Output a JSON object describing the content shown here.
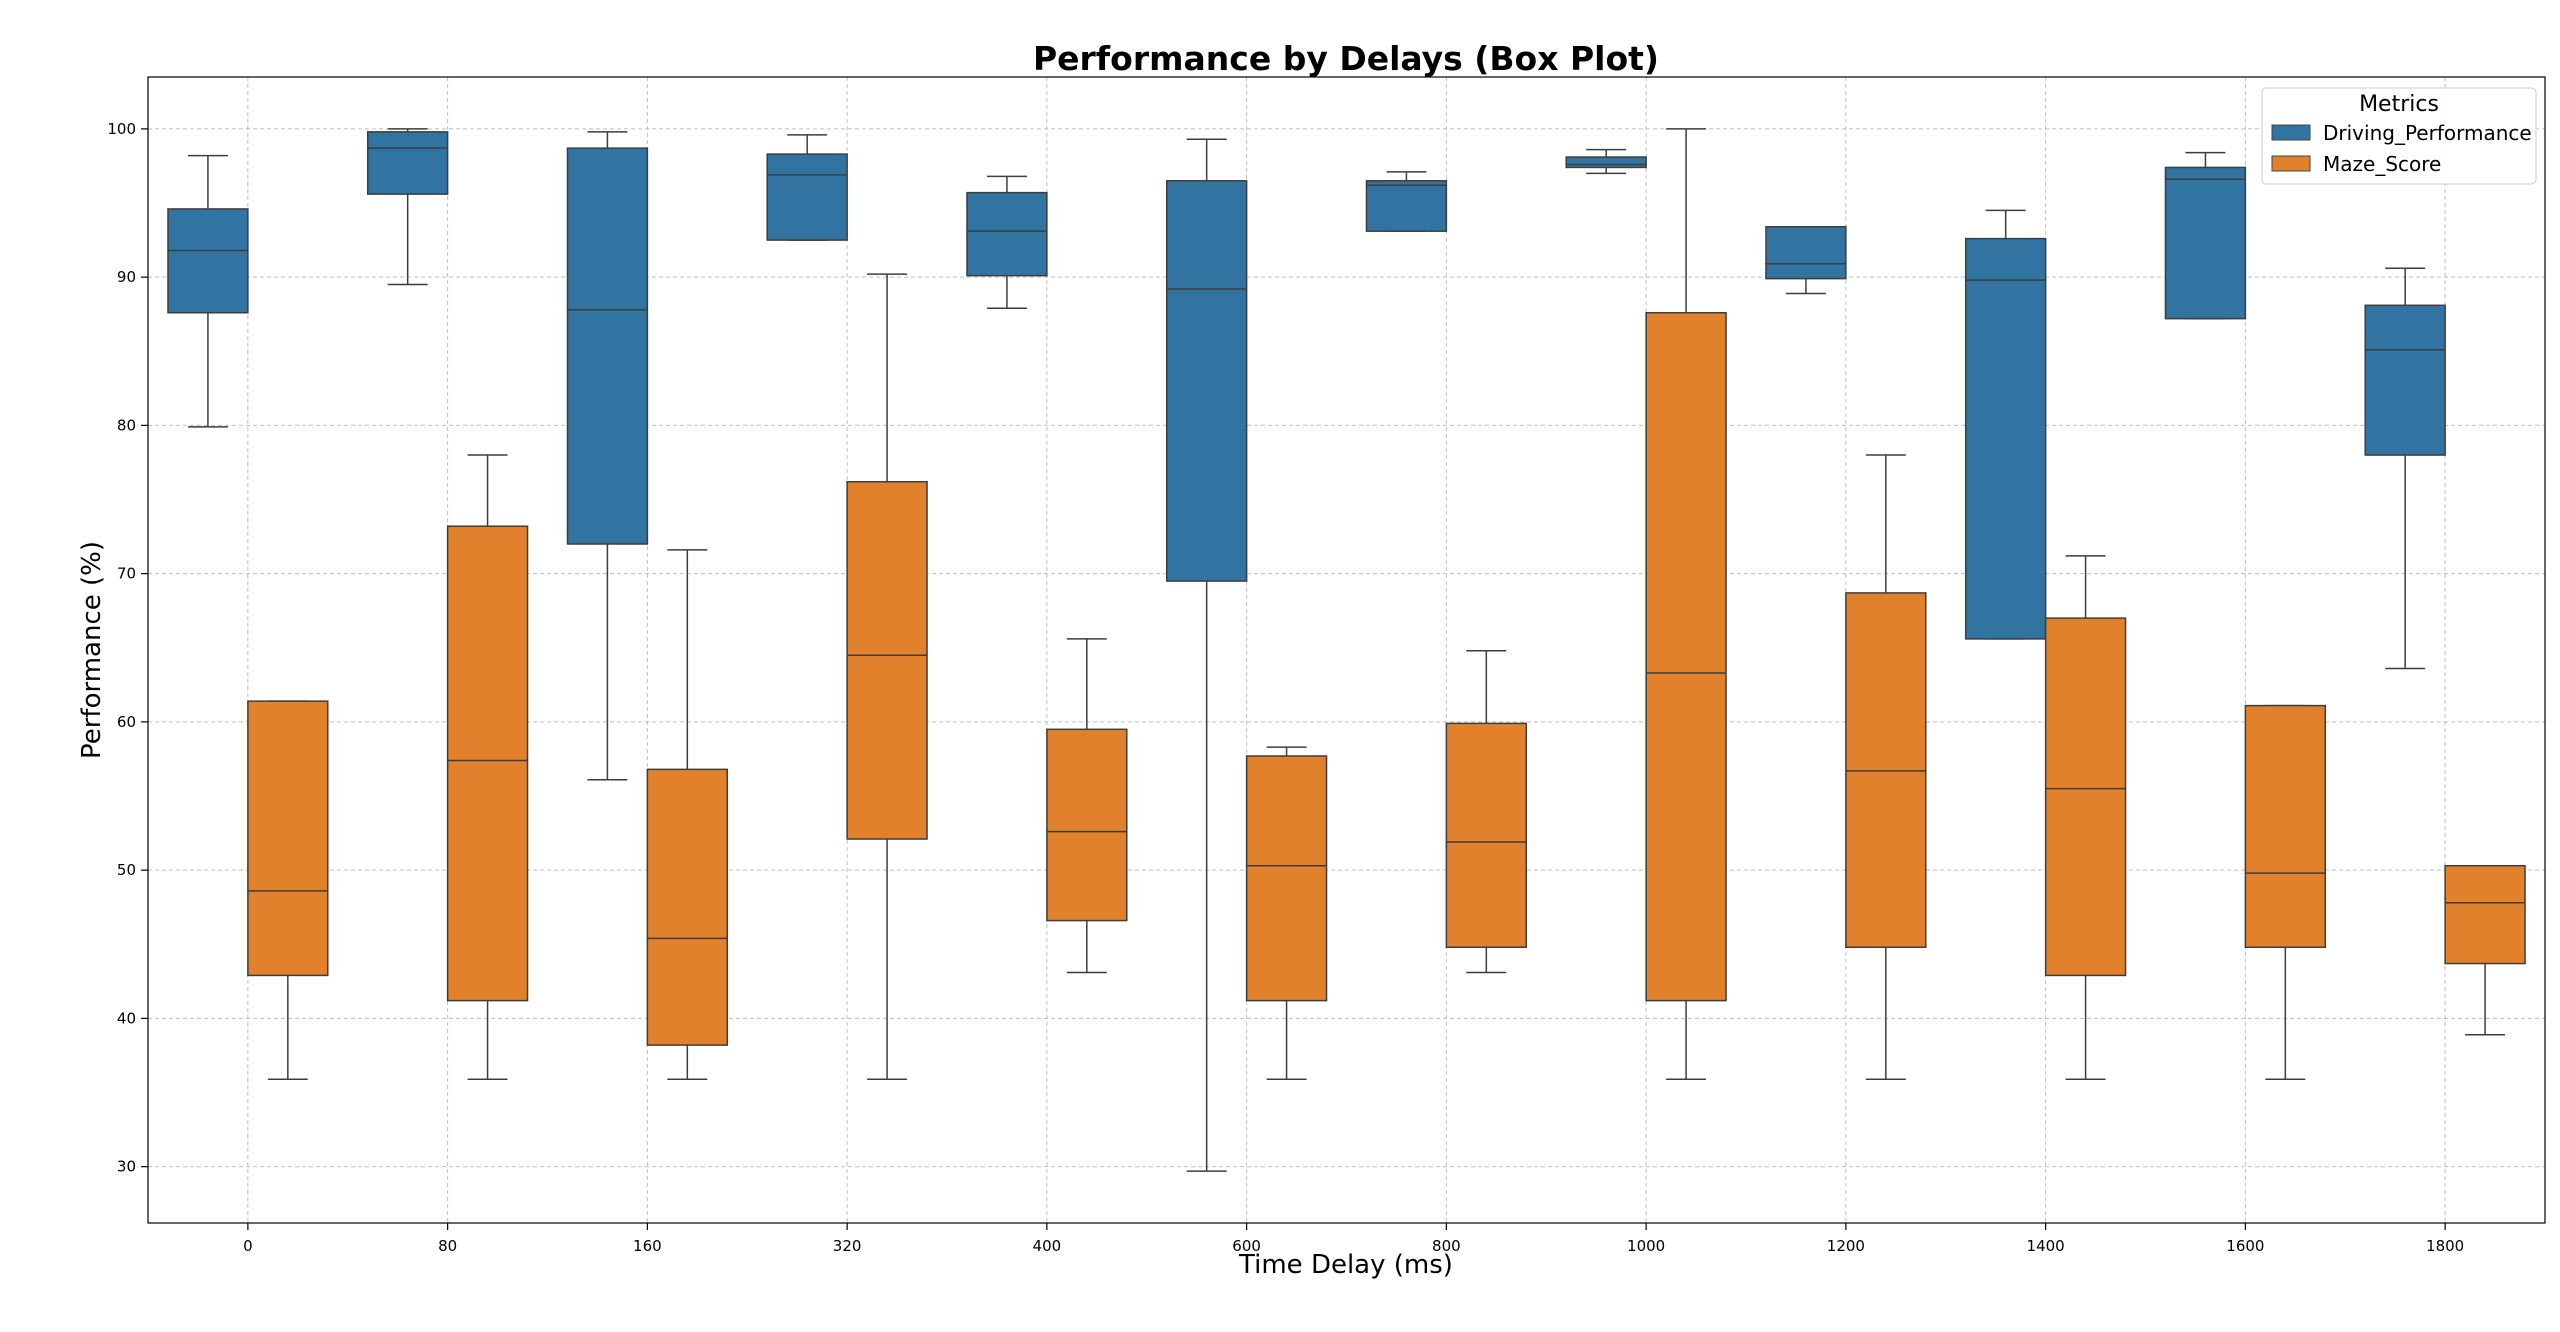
{
  "chart_data": {
    "type": "box",
    "title": "Performance by Delays (Box Plot)",
    "xlabel": "Time Delay (ms)",
    "ylabel": "Performance (%)",
    "categories": [
      "0",
      "80",
      "160",
      "320",
      "400",
      "600",
      "800",
      "1000",
      "1200",
      "1400",
      "1600",
      "1800"
    ],
    "yticks": [
      30,
      40,
      50,
      60,
      70,
      80,
      90,
      100
    ],
    "ylim": [
      26.2,
      103.5
    ],
    "grid": true,
    "legend": {
      "title": "Metrics",
      "placement": "top-right"
    },
    "series": [
      {
        "name": "Driving_Performance",
        "color": "#3274a1",
        "boxes": [
          {
            "whisker_low": 79.9,
            "q1": 87.6,
            "median": 91.8,
            "q3": 94.6,
            "whisker_high": 98.2
          },
          {
            "whisker_low": 89.5,
            "q1": 95.6,
            "median": 98.7,
            "q3": 99.8,
            "whisker_high": 100.0
          },
          {
            "whisker_low": 56.1,
            "q1": 72.0,
            "median": 87.8,
            "q3": 98.7,
            "whisker_high": 99.8
          },
          {
            "whisker_low": 92.5,
            "q1": 92.5,
            "median": 96.9,
            "q3": 98.3,
            "whisker_high": 99.6
          },
          {
            "whisker_low": 87.9,
            "q1": 90.1,
            "median": 93.1,
            "q3": 95.7,
            "whisker_high": 96.8
          },
          {
            "whisker_low": 29.7,
            "q1": 69.5,
            "median": 89.2,
            "q3": 96.5,
            "whisker_high": 99.3
          },
          {
            "whisker_low": 93.1,
            "q1": 93.1,
            "median": 96.2,
            "q3": 96.5,
            "whisker_high": 97.1
          },
          {
            "whisker_low": 97.0,
            "q1": 97.4,
            "median": 97.6,
            "q3": 98.1,
            "whisker_high": 98.6
          },
          {
            "whisker_low": 88.9,
            "q1": 89.9,
            "median": 90.9,
            "q3": 93.4,
            "whisker_high": 93.4
          },
          {
            "whisker_low": 65.6,
            "q1": 65.6,
            "median": 89.8,
            "q3": 92.6,
            "whisker_high": 94.5
          },
          {
            "whisker_low": 87.2,
            "q1": 87.2,
            "median": 96.6,
            "q3": 97.4,
            "whisker_high": 98.4
          },
          {
            "whisker_low": 63.6,
            "q1": 78.0,
            "median": 85.1,
            "q3": 88.1,
            "whisker_high": 90.6
          }
        ]
      },
      {
        "name": "Maze_Score",
        "color": "#e1812c",
        "boxes": [
          {
            "whisker_low": 35.9,
            "q1": 42.9,
            "median": 48.6,
            "q3": 61.4,
            "whisker_high": 61.4
          },
          {
            "whisker_low": 35.9,
            "q1": 41.2,
            "median": 57.4,
            "q3": 73.2,
            "whisker_high": 78.0
          },
          {
            "whisker_low": 35.9,
            "q1": 38.2,
            "median": 45.4,
            "q3": 56.8,
            "whisker_high": 71.6
          },
          {
            "whisker_low": 35.9,
            "q1": 52.1,
            "median": 64.5,
            "q3": 76.2,
            "whisker_high": 90.2
          },
          {
            "whisker_low": 43.1,
            "q1": 46.6,
            "median": 52.6,
            "q3": 59.5,
            "whisker_high": 65.6
          },
          {
            "whisker_low": 35.9,
            "q1": 41.2,
            "median": 50.3,
            "q3": 57.7,
            "whisker_high": 58.3
          },
          {
            "whisker_low": 43.1,
            "q1": 44.8,
            "median": 51.9,
            "q3": 59.9,
            "whisker_high": 64.8
          },
          {
            "whisker_low": 35.9,
            "q1": 41.2,
            "median": 63.3,
            "q3": 87.6,
            "whisker_high": 100.0
          },
          {
            "whisker_low": 35.9,
            "q1": 44.8,
            "median": 56.7,
            "q3": 68.7,
            "whisker_high": 78.0
          },
          {
            "whisker_low": 35.9,
            "q1": 42.9,
            "median": 55.5,
            "q3": 67.0,
            "whisker_high": 71.2
          },
          {
            "whisker_low": 35.9,
            "q1": 44.8,
            "median": 49.8,
            "q3": 61.1,
            "whisker_high": 61.1
          },
          {
            "whisker_low": 38.9,
            "q1": 43.7,
            "median": 47.8,
            "q3": 50.3,
            "whisker_high": 50.3
          }
        ]
      }
    ]
  }
}
